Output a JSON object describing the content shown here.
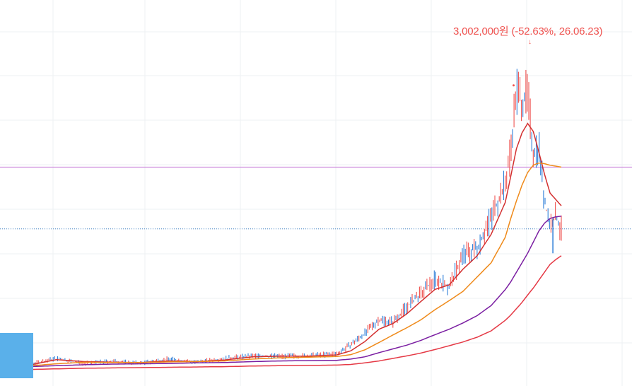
{
  "peak_annotation": {
    "text": "3,002,000원 (-52.63%, 26.06.23)",
    "arrow": "↓"
  },
  "colors": {
    "price_up": "#ef5350",
    "price_down": "#2f7fd8",
    "ma_short": "#d32f2f",
    "ma_mid": "#ef8a1a",
    "ma_long": "#7b1fa2",
    "ma_longest": "#e53945",
    "h_line": "#c77dd8",
    "dotted_line": "#3d7ec0",
    "grid": "#eef0f3",
    "corner_box": "#5ab0ea"
  },
  "chart_data": {
    "type": "line",
    "title": "",
    "xlabel": "",
    "ylabel": "",
    "x": [
      0,
      5,
      10,
      15,
      20,
      25,
      30,
      35,
      40,
      45,
      50,
      55,
      60,
      62.5,
      65,
      67.5,
      70,
      72.5,
      75,
      77.5,
      80,
      82.5,
      85,
      87.5,
      90,
      91,
      92,
      93,
      94,
      95,
      96,
      97,
      98,
      99,
      100
    ],
    "xlim": [
      0,
      100
    ],
    "ylim": [
      0,
      100
    ],
    "series": [
      {
        "values": [
          1.1,
          1.9,
          3.8,
          2.2,
          2.9,
          2.3,
          3.6,
          2.6,
          3.8,
          4.6,
          4.5,
          4.6,
          5.3,
          8.1,
          11.7,
          16.1,
          15.3,
          20.2,
          24.2,
          28.9,
          26.3,
          36.6,
          38.6,
          48.6,
          58.7,
          70.1,
          89.0,
          84.9,
          87.4,
          69.0,
          70.9,
          53.2,
          46.0,
          48.5,
          44.4
        ]
      },
      {
        "values": [
          1.1,
          1.6,
          3.4,
          2.8,
          2.6,
          2.5,
          3.0,
          2.8,
          3.3,
          4.3,
          4.5,
          4.5,
          4.9,
          6.2,
          9.1,
          13.0,
          14.8,
          17.9,
          21.8,
          25.6,
          27.0,
          32.0,
          36.2,
          43.0,
          53.0,
          61.3,
          70.0,
          75.0,
          78.0,
          75.5,
          69.0,
          62.0,
          56.0,
          54.0,
          52.0
        ]
      },
      {
        "values": [
          1.4,
          1.4,
          2.1,
          2.6,
          2.5,
          2.5,
          2.7,
          2.8,
          3.0,
          3.6,
          4.0,
          4.2,
          4.4,
          5.0,
          6.5,
          8.8,
          11.2,
          13.5,
          16.0,
          19.2,
          22.0,
          25.0,
          29.5,
          34.0,
          42.0,
          48.0,
          53.5,
          58.5,
          62.5,
          64.8,
          65.5,
          65.3,
          64.8,
          64.5,
          64.2
        ]
      },
      {
        "values": [
          1.1,
          1.2,
          1.5,
          1.8,
          2.0,
          2.1,
          2.2,
          2.4,
          2.5,
          2.8,
          3.0,
          3.1,
          3.2,
          3.6,
          4.3,
          5.6,
          6.8,
          8.0,
          9.5,
          11.3,
          13.0,
          15.0,
          17.3,
          20.5,
          25.5,
          28.0,
          31.0,
          34.0,
          37.0,
          40.5,
          44.0,
          46.5,
          48.0,
          48.5,
          48.7
        ]
      },
      {
        "values": [
          0.2,
          0.3,
          0.5,
          0.7,
          0.8,
          0.9,
          1.0,
          1.1,
          1.2,
          1.4,
          1.5,
          1.6,
          1.7,
          1.9,
          2.4,
          3.0,
          3.8,
          4.6,
          5.5,
          6.6,
          7.8,
          9.0,
          10.5,
          12.5,
          15.8,
          17.5,
          19.5,
          21.5,
          23.8,
          26.0,
          28.5,
          31.0,
          33.5,
          35.0,
          36.2
        ]
      }
    ],
    "horizontal_lines": [
      {
        "y": 64.2,
        "style": "solid"
      },
      {
        "y": 44.7,
        "style": "dotted"
      }
    ],
    "peak": {
      "x": 91.5,
      "y": 90.0
    },
    "grid": true,
    "legend": "none"
  }
}
